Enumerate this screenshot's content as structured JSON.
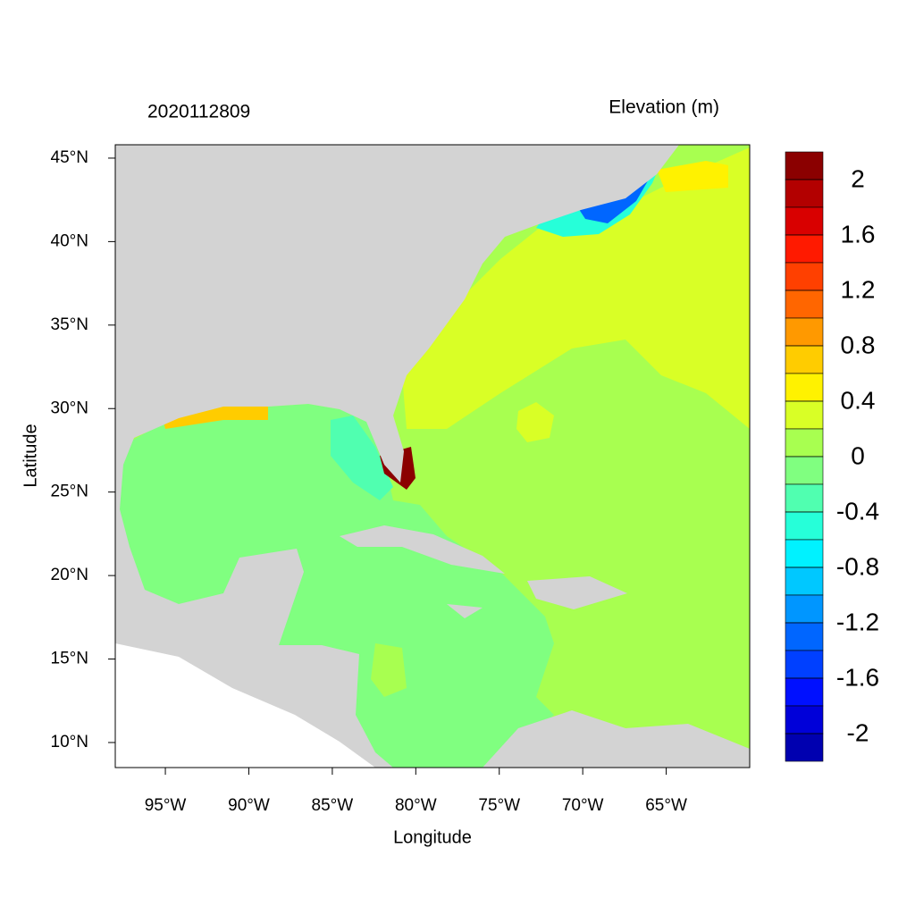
{
  "chart_data": {
    "type": "map",
    "title": "2020112809",
    "subtitle": "Elevation (m)",
    "x_label": "Longitude",
    "y_label": "Latitude",
    "xlim": [
      -98,
      -60
    ],
    "ylim": [
      8.5,
      45.8
    ],
    "xticks": [
      {
        "value": -95,
        "label": "95°W"
      },
      {
        "value": -90,
        "label": "90°W"
      },
      {
        "value": -85,
        "label": "85°W"
      },
      {
        "value": -80,
        "label": "80°W"
      },
      {
        "value": -75,
        "label": "75°W"
      },
      {
        "value": -70,
        "label": "70°W"
      },
      {
        "value": -65,
        "label": "65°W"
      }
    ],
    "yticks": [
      {
        "value": 10,
        "label": "10°N"
      },
      {
        "value": 15,
        "label": "15°N"
      },
      {
        "value": 20,
        "label": "20°N"
      },
      {
        "value": 25,
        "label": "25°N"
      },
      {
        "value": 30,
        "label": "30°N"
      },
      {
        "value": 35,
        "label": "35°N"
      },
      {
        "value": 40,
        "label": "40°N"
      },
      {
        "value": 45,
        "label": "45°N"
      }
    ],
    "colorbar": {
      "lim": [
        -2.2,
        2.2
      ],
      "ticks": [
        2,
        1.6,
        1.2,
        0.8,
        0.4,
        0,
        -0.4,
        -0.8,
        -1.2,
        -1.6,
        -2
      ],
      "colors": [
        "#8b0000",
        "#b30000",
        "#d90000",
        "#ff1a00",
        "#ff4000",
        "#ff6600",
        "#ff9900",
        "#ffcc00",
        "#fff200",
        "#d9ff26",
        "#a8ff50",
        "#80ff80",
        "#50ffb0",
        "#26ffd9",
        "#00f2ff",
        "#00c8ff",
        "#0096ff",
        "#0066ff",
        "#0040ff",
        "#0010ff",
        "#0000d9",
        "#0000b0"
      ]
    }
  }
}
